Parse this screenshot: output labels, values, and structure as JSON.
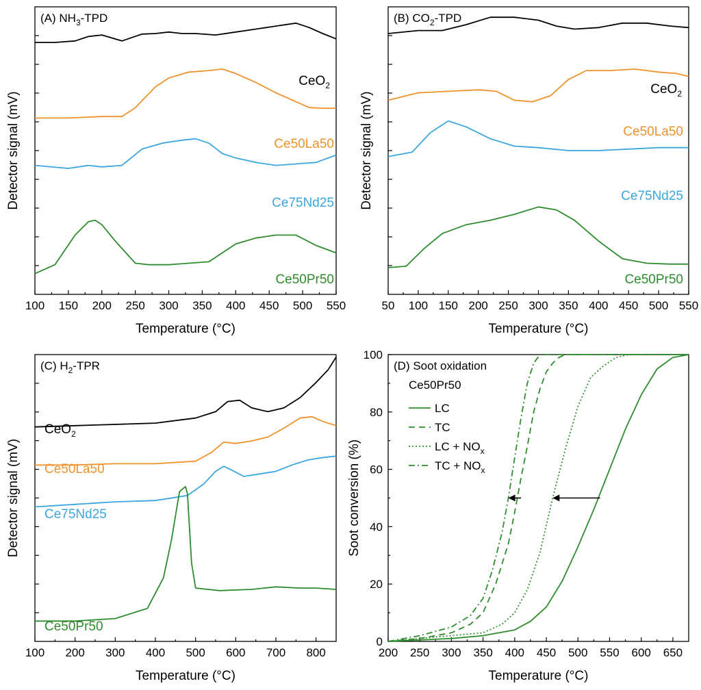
{
  "figure_colors": {
    "black": "#000000",
    "orange": "#f0922b",
    "blue": "#3aa6de",
    "green": "#2e8b2e"
  },
  "chart_data": [
    {
      "panel": "A",
      "type": "line",
      "title": "(A) NH",
      "title_sub": "3",
      "title_tail": "-TPD",
      "xlabel": "Temperature (°C)",
      "ylabel": "Detector signal (mV)",
      "xlim": [
        100,
        550
      ],
      "xticks": [
        100,
        150,
        200,
        250,
        300,
        350,
        400,
        450,
        500,
        550
      ],
      "yticks_labeled": false,
      "series": [
        {
          "name": "CeO",
          "name_sub": "2",
          "color": "#000000",
          "x": [
            100,
            130,
            160,
            180,
            200,
            230,
            260,
            280,
            300,
            320,
            340,
            370,
            400,
            430,
            460,
            490,
            510,
            530,
            550
          ],
          "y": [
            9.0,
            9.0,
            9.05,
            9.2,
            9.25,
            9.05,
            9.28,
            9.3,
            9.35,
            9.3,
            9.3,
            9.25,
            9.35,
            9.45,
            9.55,
            9.65,
            9.5,
            9.3,
            9.12
          ]
        },
        {
          "name": "Ce50La50",
          "color": "#f0922b",
          "x": [
            100,
            150,
            200,
            230,
            250,
            280,
            300,
            330,
            360,
            380,
            400,
            430,
            460,
            490,
            510,
            530,
            550
          ],
          "y": [
            6.45,
            6.45,
            6.5,
            6.5,
            6.8,
            7.5,
            7.8,
            8.0,
            8.05,
            8.1,
            7.95,
            7.65,
            7.3,
            7.0,
            6.8,
            6.78,
            6.78
          ]
        },
        {
          "name": "Ce75Nd25",
          "color": "#3aa6de",
          "x": [
            100,
            150,
            180,
            200,
            230,
            260,
            290,
            320,
            340,
            360,
            380,
            400,
            430,
            460,
            490,
            520,
            550
          ],
          "y": [
            4.85,
            4.75,
            4.85,
            4.8,
            4.85,
            5.4,
            5.6,
            5.7,
            5.75,
            5.6,
            5.25,
            5.1,
            4.95,
            4.85,
            4.9,
            4.95,
            5.2
          ]
        },
        {
          "name": "Ce50Pr50",
          "color": "#2e8b2e",
          "x": [
            100,
            130,
            160,
            180,
            190,
            200,
            220,
            250,
            270,
            300,
            330,
            360,
            400,
            430,
            460,
            490,
            520,
            550
          ],
          "y": [
            1.2,
            1.5,
            2.5,
            2.95,
            3.0,
            2.85,
            2.3,
            1.55,
            1.5,
            1.5,
            1.55,
            1.6,
            2.2,
            2.4,
            2.5,
            2.5,
            2.15,
            1.9
          ]
        }
      ]
    },
    {
      "panel": "B",
      "type": "line",
      "title": "(B) CO",
      "title_sub": "2",
      "title_tail": "-TPD",
      "xlabel": "Temperature (°C)",
      "ylabel": "Detector signal (mV)",
      "xlim": [
        50,
        550
      ],
      "xticks": [
        50,
        100,
        150,
        200,
        250,
        300,
        350,
        400,
        450,
        500,
        550
      ],
      "yticks_labeled": false,
      "series": [
        {
          "name": "CeO",
          "name_sub": "2",
          "color": "#000000",
          "x": [
            50,
            100,
            140,
            180,
            220,
            260,
            300,
            330,
            360,
            400,
            440,
            480,
            520,
            550
          ],
          "y": [
            9.3,
            9.4,
            9.4,
            9.6,
            9.85,
            9.85,
            9.75,
            9.55,
            9.45,
            9.5,
            9.65,
            9.65,
            9.55,
            9.5
          ]
        },
        {
          "name": "Ce50La50",
          "color": "#f0922b",
          "x": [
            50,
            100,
            150,
            200,
            230,
            260,
            290,
            320,
            350,
            380,
            420,
            460,
            500,
            530,
            550
          ],
          "y": [
            7.05,
            7.3,
            7.35,
            7.4,
            7.35,
            7.05,
            7.0,
            7.2,
            7.75,
            8.05,
            8.05,
            8.1,
            8.0,
            7.95,
            7.85
          ]
        },
        {
          "name": "Ce75Nd25",
          "color": "#3aa6de",
          "x": [
            50,
            90,
            120,
            150,
            180,
            220,
            260,
            300,
            350,
            400,
            450,
            500,
            550
          ],
          "y": [
            5.15,
            5.3,
            5.95,
            6.35,
            6.15,
            5.75,
            5.5,
            5.45,
            5.35,
            5.35,
            5.4,
            5.45,
            5.45
          ]
        },
        {
          "name": "Ce50Pr50",
          "color": "#2e8b2e",
          "x": [
            50,
            80,
            110,
            140,
            180,
            220,
            260,
            300,
            330,
            360,
            400,
            440,
            480,
            520,
            550
          ],
          "y": [
            1.4,
            1.45,
            2.05,
            2.55,
            2.85,
            3.0,
            3.2,
            3.45,
            3.35,
            3.0,
            2.3,
            1.7,
            1.55,
            1.52,
            1.52
          ]
        }
      ]
    },
    {
      "panel": "C",
      "type": "line",
      "title": "(C) H",
      "title_sub": "2",
      "title_tail": "-TPR",
      "xlabel": "Temperature (°C)",
      "ylabel": "Detector signal (mV)",
      "xlim": [
        100,
        850
      ],
      "xticks": [
        100,
        200,
        300,
        400,
        500,
        600,
        700,
        800
      ],
      "yticks_labeled": false,
      "series": [
        {
          "name": "CeO",
          "name_sub": "2",
          "color": "#000000",
          "x": [
            100,
            200,
            300,
            400,
            500,
            550,
            580,
            610,
            640,
            680,
            720,
            760,
            800,
            830,
            850
          ],
          "y": [
            8.95,
            9.0,
            9.05,
            9.1,
            9.3,
            9.55,
            9.95,
            10.0,
            9.7,
            9.55,
            9.7,
            10.1,
            10.7,
            11.2,
            11.7
          ]
        },
        {
          "name": "Ce50La50",
          "color": "#f0922b",
          "x": [
            100,
            200,
            300,
            400,
            500,
            540,
            570,
            600,
            640,
            680,
            720,
            760,
            790,
            820,
            850
          ],
          "y": [
            7.45,
            7.45,
            7.5,
            7.5,
            7.6,
            7.95,
            8.35,
            8.3,
            8.4,
            8.55,
            8.9,
            9.3,
            9.35,
            9.15,
            9.0
          ]
        },
        {
          "name": "Ce75Nd25",
          "color": "#3aa6de",
          "x": [
            100,
            200,
            300,
            400,
            480,
            520,
            550,
            570,
            590,
            620,
            660,
            700,
            740,
            780,
            820,
            850
          ],
          "y": [
            5.8,
            5.9,
            6.0,
            6.05,
            6.25,
            6.7,
            7.2,
            7.4,
            7.25,
            7.0,
            7.1,
            7.2,
            7.45,
            7.65,
            7.75,
            7.8
          ]
        },
        {
          "name": "Ce50Pr50",
          "color": "#2e8b2e",
          "x": [
            100,
            200,
            300,
            380,
            420,
            440,
            460,
            475,
            480,
            490,
            500,
            560,
            640,
            700,
            760,
            800,
            850
          ],
          "y": [
            1.3,
            1.3,
            1.4,
            1.8,
            3.0,
            4.5,
            6.4,
            6.6,
            6.3,
            3.6,
            2.6,
            2.5,
            2.55,
            2.65,
            2.6,
            2.6,
            2.55
          ]
        }
      ]
    },
    {
      "panel": "D",
      "type": "line",
      "title": "(D) Soot oxidation",
      "subtitle": "Ce50Pr50",
      "xlabel": "Temperature (°C)",
      "ylabel": "Soot conversion (%)",
      "xlim": [
        200,
        675
      ],
      "ylim": [
        0,
        100
      ],
      "xticks": [
        200,
        250,
        300,
        350,
        400,
        450,
        500,
        550,
        600,
        650
      ],
      "yticks": [
        0,
        20,
        40,
        60,
        80,
        100
      ],
      "series": [
        {
          "name": "LC",
          "dash": "solid",
          "color": "#2e8b2e",
          "x": [
            200,
            250,
            300,
            350,
            400,
            425,
            450,
            475,
            500,
            525,
            550,
            575,
            600,
            625,
            650,
            675
          ],
          "y": [
            0,
            0.5,
            1,
            2,
            4,
            7,
            12,
            21,
            33,
            46,
            60,
            74,
            86,
            95,
            99,
            100
          ]
        },
        {
          "name": "TC",
          "dash": "dashed",
          "color": "#2e8b2e",
          "x": [
            200,
            250,
            300,
            330,
            350,
            370,
            390,
            400,
            410,
            420,
            430,
            440,
            450,
            460,
            470,
            480,
            675
          ],
          "y": [
            0,
            1,
            3,
            6,
            10,
            20,
            34,
            45,
            57,
            68,
            80,
            88,
            94,
            97,
            99,
            100,
            100
          ]
        },
        {
          "name": "LC + NO",
          "name_sub": "x",
          "dash": "dotted",
          "color": "#2e8b2e",
          "x": [
            200,
            250,
            300,
            350,
            380,
            400,
            420,
            440,
            460,
            480,
            500,
            520,
            540,
            560,
            580,
            675
          ],
          "y": [
            0,
            1,
            2,
            3,
            6,
            10,
            18,
            31,
            50,
            67,
            82,
            92,
            96,
            99,
            100,
            100
          ]
        },
        {
          "name": "TC + NO",
          "name_sub": "x",
          "dash": "dashdot",
          "color": "#2e8b2e",
          "x": [
            200,
            250,
            300,
            330,
            350,
            365,
            380,
            390,
            400,
            410,
            420,
            430,
            440,
            675
          ],
          "y": [
            0,
            2,
            5,
            9,
            15,
            25,
            38,
            50,
            64,
            78,
            90,
            97,
            100,
            100
          ]
        }
      ],
      "annotations": [
        {
          "type": "arrow",
          "from": [
            410,
            50
          ],
          "to": [
            390,
            50
          ]
        },
        {
          "type": "arrow",
          "from": [
            535,
            50
          ],
          "to": [
            460,
            50
          ]
        }
      ]
    }
  ]
}
